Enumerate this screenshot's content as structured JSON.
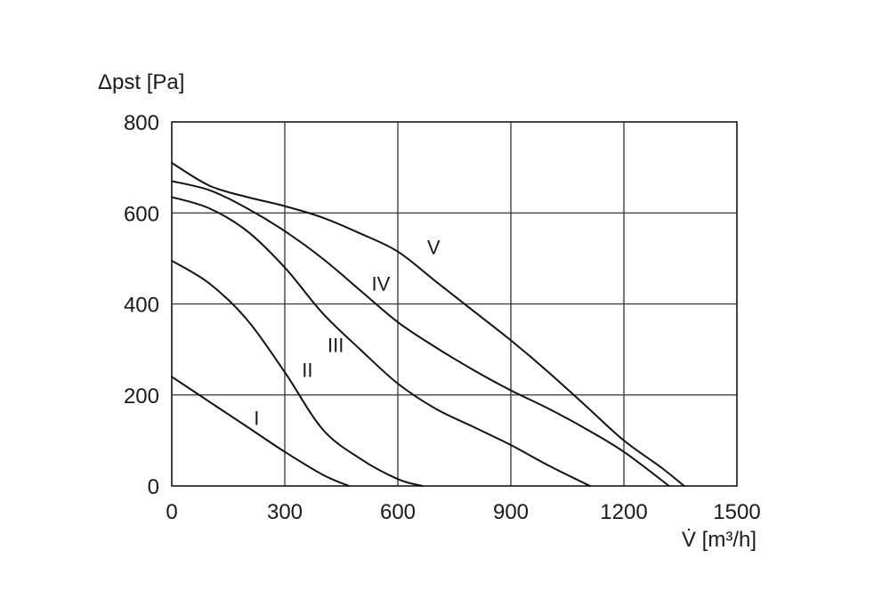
{
  "chart_data": {
    "type": "line",
    "title": "",
    "ylabel": "Δpst [Pa]",
    "xlabel": "V̇ [m³/h]",
    "xlim": [
      0,
      1500
    ],
    "ylim": [
      0,
      800
    ],
    "xticks": [
      "0",
      "300",
      "600",
      "900",
      "1200",
      "1500"
    ],
    "yticks": [
      "0",
      "200",
      "400",
      "600",
      "800"
    ],
    "grid": true,
    "series": [
      {
        "name": "I",
        "label_at": [
          225,
          150
        ],
        "points": [
          [
            0,
            240
          ],
          [
            100,
            185
          ],
          [
            200,
            130
          ],
          [
            300,
            75
          ],
          [
            400,
            25
          ],
          [
            470,
            0
          ]
        ]
      },
      {
        "name": "II",
        "label_at": [
          360,
          255
        ],
        "points": [
          [
            0,
            495
          ],
          [
            100,
            445
          ],
          [
            200,
            365
          ],
          [
            300,
            250
          ],
          [
            400,
            125
          ],
          [
            500,
            60
          ],
          [
            600,
            15
          ],
          [
            665,
            0
          ]
        ]
      },
      {
        "name": "III",
        "label_at": [
          435,
          310
        ],
        "points": [
          [
            0,
            635
          ],
          [
            100,
            610
          ],
          [
            200,
            560
          ],
          [
            300,
            480
          ],
          [
            400,
            380
          ],
          [
            500,
            300
          ],
          [
            600,
            225
          ],
          [
            700,
            170
          ],
          [
            800,
            130
          ],
          [
            900,
            90
          ],
          [
            1000,
            45
          ],
          [
            1110,
            0
          ]
        ]
      },
      {
        "name": "IV",
        "label_at": [
          555,
          445
        ],
        "points": [
          [
            0,
            670
          ],
          [
            100,
            650
          ],
          [
            200,
            610
          ],
          [
            300,
            560
          ],
          [
            400,
            500
          ],
          [
            500,
            430
          ],
          [
            600,
            360
          ],
          [
            700,
            305
          ],
          [
            800,
            255
          ],
          [
            900,
            210
          ],
          [
            1000,
            170
          ],
          [
            1100,
            125
          ],
          [
            1200,
            75
          ],
          [
            1320,
            0
          ]
        ]
      },
      {
        "name": "V",
        "label_at": [
          695,
          525
        ],
        "points": [
          [
            0,
            710
          ],
          [
            100,
            660
          ],
          [
            200,
            635
          ],
          [
            300,
            615
          ],
          [
            400,
            590
          ],
          [
            500,
            555
          ],
          [
            600,
            515
          ],
          [
            700,
            450
          ],
          [
            800,
            385
          ],
          [
            900,
            320
          ],
          [
            1000,
            250
          ],
          [
            1100,
            175
          ],
          [
            1200,
            100
          ],
          [
            1300,
            40
          ],
          [
            1360,
            0
          ]
        ]
      }
    ]
  }
}
